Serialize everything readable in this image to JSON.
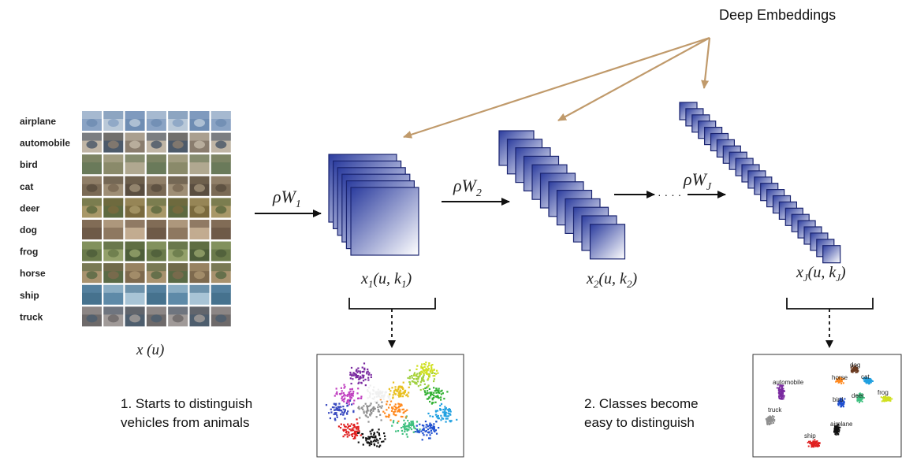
{
  "title": "Deep Embeddings",
  "classes": [
    "airplane",
    "automobile",
    "bird",
    "cat",
    "deer",
    "dog",
    "frog",
    "horse",
    "ship",
    "truck"
  ],
  "input_label": "x (u)",
  "layers": [
    {
      "op": "ρW",
      "op_sub": "1",
      "x_sub": "1",
      "k_sub": "1"
    },
    {
      "op": "ρW",
      "op_sub": "2",
      "x_sub": "2",
      "k_sub": "2"
    },
    {
      "op": "ρW",
      "op_sub": "J",
      "x_sub": "J",
      "k_sub": "J"
    }
  ],
  "ellipsis": "· · · ·",
  "captions": {
    "first": [
      "1. Starts to distinguish",
      "vehicles from animals"
    ],
    "last": [
      "2. Classes become",
      "easy to distinguish"
    ]
  },
  "embedding_labels": [
    "automobile",
    "truck",
    "dog",
    "horse",
    "cat",
    "deer",
    "frog",
    "bird",
    "airplane",
    "ship"
  ],
  "colors": {
    "arrow": "#c09a6b",
    "cube_dark": "#2b3c9e",
    "cube_light": "#ffffff",
    "outline": "#1a2470"
  }
}
